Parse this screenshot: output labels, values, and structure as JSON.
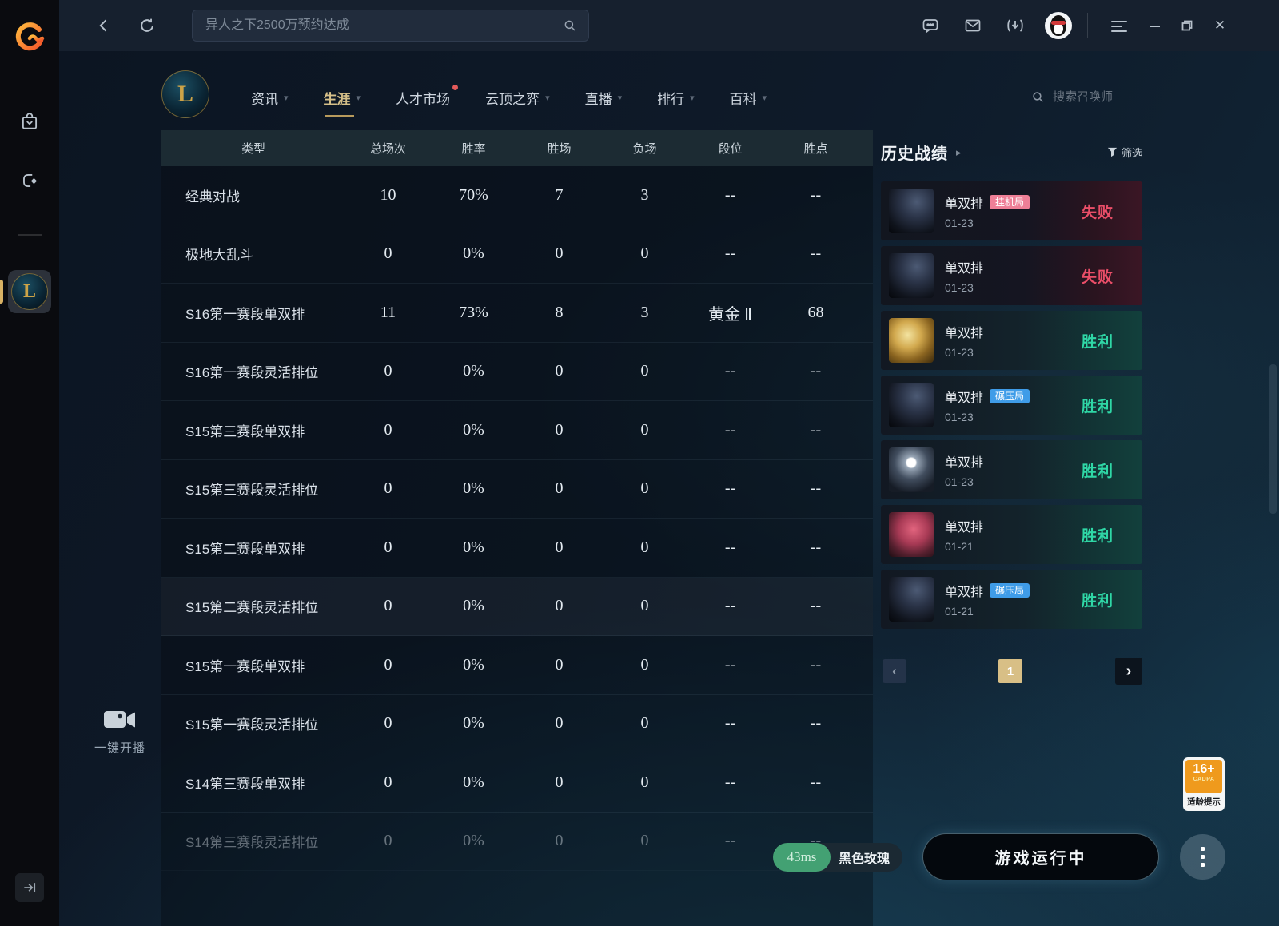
{
  "topbar": {
    "search_placeholder": "异人之下2500万预约达成"
  },
  "nav": {
    "tabs": [
      {
        "label": "资讯",
        "has_dropdown": true,
        "active": false,
        "dot": false
      },
      {
        "label": "生涯",
        "has_dropdown": true,
        "active": true,
        "dot": false
      },
      {
        "label": "人才市场",
        "has_dropdown": false,
        "active": false,
        "dot": true
      },
      {
        "label": "云顶之弈",
        "has_dropdown": true,
        "active": false,
        "dot": false
      },
      {
        "label": "直播",
        "has_dropdown": true,
        "active": false,
        "dot": false
      },
      {
        "label": "排行",
        "has_dropdown": true,
        "active": false,
        "dot": false
      },
      {
        "label": "百科",
        "has_dropdown": true,
        "active": false,
        "dot": false
      }
    ],
    "summoner_search_placeholder": "搜索召唤师"
  },
  "table": {
    "headers": [
      "类型",
      "总场次",
      "胜率",
      "胜场",
      "负场",
      "段位",
      "胜点"
    ],
    "rows": [
      {
        "cells": [
          "经典对战",
          "10",
          "70%",
          "7",
          "3",
          "--",
          "--"
        ],
        "state": "normal"
      },
      {
        "cells": [
          "极地大乱斗",
          "0",
          "0%",
          "0",
          "0",
          "--",
          "--"
        ],
        "state": "normal"
      },
      {
        "cells": [
          "S16第一赛段单双排",
          "11",
          "73%",
          "8",
          "3",
          "黄金 Ⅱ",
          "68"
        ],
        "state": "normal"
      },
      {
        "cells": [
          "S16第一赛段灵活排位",
          "0",
          "0%",
          "0",
          "0",
          "--",
          "--"
        ],
        "state": "normal"
      },
      {
        "cells": [
          "S15第三赛段单双排",
          "0",
          "0%",
          "0",
          "0",
          "--",
          "--"
        ],
        "state": "normal"
      },
      {
        "cells": [
          "S15第三赛段灵活排位",
          "0",
          "0%",
          "0",
          "0",
          "--",
          "--"
        ],
        "state": "normal"
      },
      {
        "cells": [
          "S15第二赛段单双排",
          "0",
          "0%",
          "0",
          "0",
          "--",
          "--"
        ],
        "state": "normal"
      },
      {
        "cells": [
          "S15第二赛段灵活排位",
          "0",
          "0%",
          "0",
          "0",
          "--",
          "--"
        ],
        "state": "highlight"
      },
      {
        "cells": [
          "S15第一赛段单双排",
          "0",
          "0%",
          "0",
          "0",
          "--",
          "--"
        ],
        "state": "normal"
      },
      {
        "cells": [
          "S15第一赛段灵活排位",
          "0",
          "0%",
          "0",
          "0",
          "--",
          "--"
        ],
        "state": "normal"
      },
      {
        "cells": [
          "S14第三赛段单双排",
          "0",
          "0%",
          "0",
          "0",
          "--",
          "--"
        ],
        "state": "normal"
      },
      {
        "cells": [
          "S14第三赛段灵活排位",
          "0",
          "0%",
          "0",
          "0",
          "--",
          "--"
        ],
        "state": "faded"
      }
    ]
  },
  "history": {
    "title": "历史战绩",
    "filter_label": "筛选",
    "matches": [
      {
        "queue": "单双排",
        "tag": "挂机局",
        "tag_style": "pink",
        "date": "01-23",
        "result": "失败",
        "outcome": "loss",
        "avatar": "dark"
      },
      {
        "queue": "单双排",
        "tag": null,
        "tag_style": null,
        "date": "01-23",
        "result": "失败",
        "outcome": "loss",
        "avatar": "dark"
      },
      {
        "queue": "单双排",
        "tag": null,
        "tag_style": null,
        "date": "01-23",
        "result": "胜利",
        "outcome": "win",
        "avatar": "gold"
      },
      {
        "queue": "单双排",
        "tag": "碾压局",
        "tag_style": "blue",
        "date": "01-23",
        "result": "胜利",
        "outcome": "win",
        "avatar": "dark"
      },
      {
        "queue": "单双排",
        "tag": null,
        "tag_style": null,
        "date": "01-23",
        "result": "胜利",
        "outcome": "win",
        "avatar": "moon"
      },
      {
        "queue": "单双排",
        "tag": null,
        "tag_style": null,
        "date": "01-21",
        "result": "胜利",
        "outcome": "win",
        "avatar": "red"
      },
      {
        "queue": "单双排",
        "tag": "碾压局",
        "tag_style": "blue",
        "date": "01-21",
        "result": "胜利",
        "outcome": "win",
        "avatar": "dark"
      }
    ],
    "pagination": {
      "current": "1"
    }
  },
  "broadcast": {
    "label": "一键开播"
  },
  "status": {
    "ping": "43ms",
    "server": "黑色玫瑰",
    "game_state": "游戏运行中"
  },
  "age_badge": {
    "rating": "16+",
    "org": "CADPA",
    "note": "适龄提示"
  },
  "logo_letter": "L",
  "icons": {
    "dropdown_chevron": "▾",
    "history_arrow": "▸",
    "pager_prev": "‹",
    "pager_next": "›"
  }
}
